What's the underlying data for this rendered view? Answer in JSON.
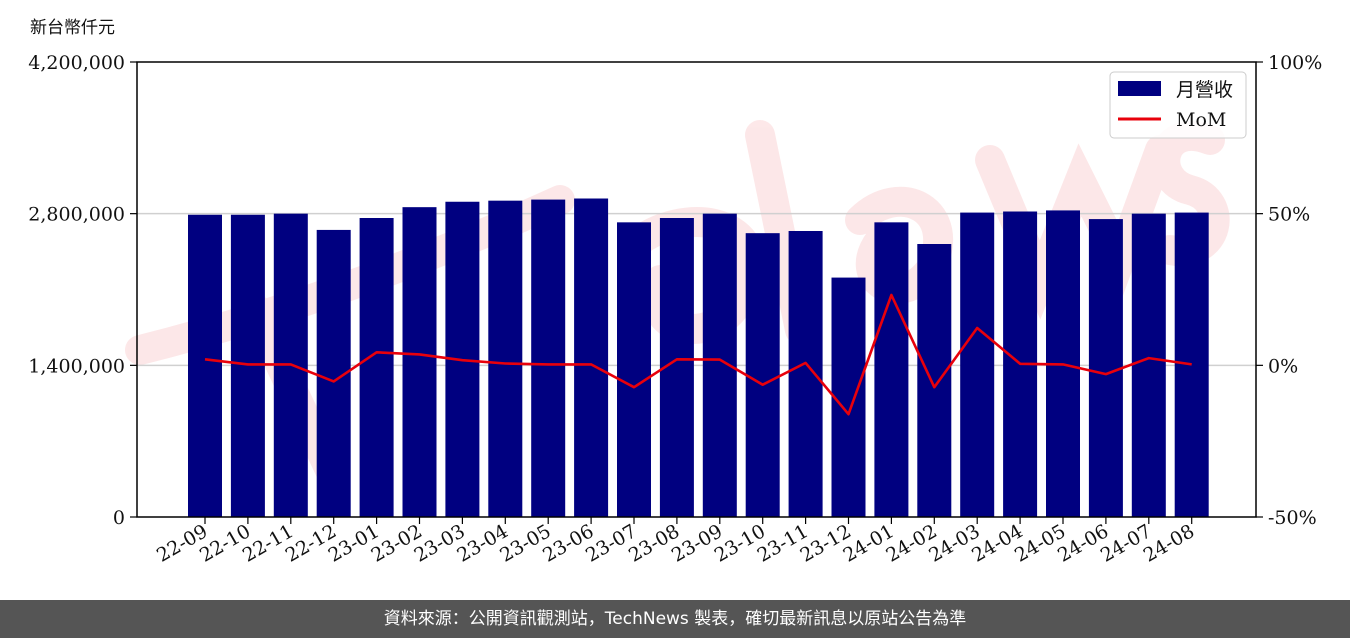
{
  "chart_data": {
    "type": "bar",
    "unit_label": "新台幣仟元",
    "categories": [
      "22-09",
      "22-10",
      "22-11",
      "22-12",
      "23-01",
      "23-02",
      "23-03",
      "23-04",
      "23-05",
      "23-06",
      "23-07",
      "23-08",
      "23-09",
      "23-10",
      "23-11",
      "23-12",
      "24-01",
      "24-02",
      "24-03",
      "24-04",
      "24-05",
      "24-06",
      "24-07",
      "24-08"
    ],
    "series": [
      {
        "name": "月營收",
        "axis": "left",
        "type": "bar",
        "color": "#000080",
        "values": [
          2790000,
          2790000,
          2800000,
          2650000,
          2760000,
          2860000,
          2910000,
          2920000,
          2930000,
          2940000,
          2720000,
          2760000,
          2800000,
          2620000,
          2640000,
          2210000,
          2720000,
          2520000,
          2810000,
          2820000,
          2830000,
          2750000,
          2800000,
          2810000
        ]
      },
      {
        "name": "MoM",
        "axis": "right",
        "type": "line",
        "color": "#e8000b",
        "values": [
          2.0,
          0.3,
          0.3,
          -5.3,
          4.3,
          3.6,
          1.7,
          0.6,
          0.3,
          0.3,
          -7.2,
          2.0,
          1.9,
          -6.4,
          0.8,
          -16.1,
          23.2,
          -7.2,
          12.3,
          0.5,
          0.3,
          -2.9,
          2.4,
          0.3
        ]
      }
    ],
    "y_left": {
      "min": 0,
      "max": 4200000,
      "ticks": [
        "0",
        "1,400,000",
        "2,800,000",
        "4,200,000"
      ]
    },
    "y_right": {
      "min": -50,
      "max": 100,
      "ticks": [
        "-50%",
        "0%",
        "50%",
        "100%"
      ]
    },
    "grid": "horizontal",
    "legend": "top-right"
  },
  "footer": {
    "text": "資料來源：公開資訊觀測站，TechNews 製表，確切最新訊息以原站公告為準"
  }
}
